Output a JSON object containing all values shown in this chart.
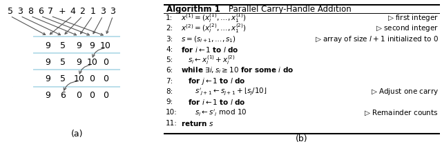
{
  "title_a": "(a)",
  "title_b": "(b)",
  "input_numbers": [
    "5",
    "3",
    "8",
    "6",
    "7",
    "+",
    "4",
    "2",
    "1",
    "3",
    "3"
  ],
  "rows": [
    [
      "9",
      "5",
      "9",
      "9",
      "10"
    ],
    [
      "9",
      "5",
      "9",
      "10",
      "0"
    ],
    [
      "9",
      "5",
      "10",
      "0",
      "0"
    ],
    [
      "9",
      "6",
      "0",
      "0",
      "0"
    ]
  ],
  "line_color": "#add8e6",
  "arrow_color": "#555555",
  "bg_color": "#ffffff"
}
